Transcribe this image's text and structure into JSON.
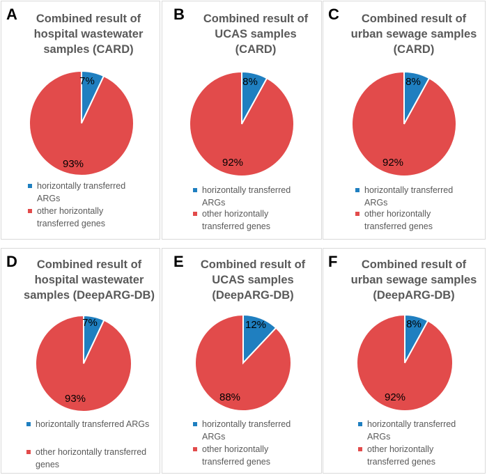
{
  "colors": {
    "arg": "#1f7fc0",
    "other": "#e24b4b"
  },
  "legend": {
    "arg_short": [
      "horizontally transferred",
      "ARGs"
    ],
    "arg_long": [
      "horizontally transferred ARGs"
    ],
    "other_a": [
      "other horizontally",
      "transferred genes"
    ],
    "other_b": [
      "other horizontally transferred",
      "genes"
    ]
  },
  "panels": [
    {
      "letter": "A",
      "title": [
        "Combined result of",
        "hospital wastewater",
        "samples (CARD)"
      ]
    },
    {
      "letter": "B",
      "title": [
        "Combined result of",
        "UCAS samples (CARD)"
      ]
    },
    {
      "letter": "C",
      "title": [
        "Combined result of",
        "urban sewage samples",
        "(CARD)"
      ]
    },
    {
      "letter": "D",
      "title": [
        "Combined result of",
        "hospital wastewater",
        "samples (DeepARG-DB)"
      ]
    },
    {
      "letter": "E",
      "title": [
        "Combined result of",
        "UCAS samples",
        "(DeepARG-DB)"
      ]
    },
    {
      "letter": "F",
      "title": [
        "Combined result of",
        "urban sewage samples",
        "(DeepARG-DB)"
      ]
    }
  ],
  "chart_data": [
    {
      "type": "pie",
      "title": "Combined result of hospital wastewater samples (CARD)",
      "labels": [
        "horizontally transferred ARGs",
        "other horizontally transferred genes"
      ],
      "values": [
        7,
        93
      ],
      "value_labels": [
        "7%",
        "93%"
      ]
    },
    {
      "type": "pie",
      "title": "Combined result of UCAS samples (CARD)",
      "labels": [
        "horizontally transferred ARGs",
        "other horizontally transferred genes"
      ],
      "values": [
        8,
        92
      ],
      "value_labels": [
        "8%",
        "92%"
      ]
    },
    {
      "type": "pie",
      "title": "Combined result of urban sewage samples (CARD)",
      "labels": [
        "horizontally transferred ARGs",
        "other horizontally transferred genes"
      ],
      "values": [
        8,
        92
      ],
      "value_labels": [
        "8%",
        "92%"
      ]
    },
    {
      "type": "pie",
      "title": "Combined result of hospital wastewater samples (DeepARG-DB)",
      "labels": [
        "horizontally transferred ARGs",
        "other horizontally transferred genes"
      ],
      "values": [
        7,
        93
      ],
      "value_labels": [
        "7%",
        "93%"
      ]
    },
    {
      "type": "pie",
      "title": "Combined result of UCAS samples (DeepARG-DB)",
      "labels": [
        "horizontally transferred ARGs",
        "other horizontally transferred genes"
      ],
      "values": [
        12,
        88
      ],
      "value_labels": [
        "12%",
        "88%"
      ]
    },
    {
      "type": "pie",
      "title": "Combined result of urban sewage samples (DeepARG-DB)",
      "labels": [
        "horizontally transferred ARGs",
        "other horizontally transferred genes"
      ],
      "values": [
        8,
        92
      ],
      "value_labels": [
        "8%",
        "92%"
      ]
    }
  ]
}
